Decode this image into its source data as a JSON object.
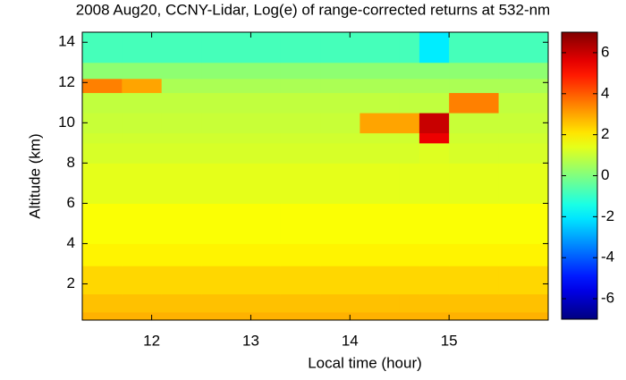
{
  "chart_data": {
    "type": "heatmap",
    "title": "2008 Aug20, CCNY-Lidar, Log(e) of range-corrected returns at 532-nm",
    "x_label": "Local time (hour)",
    "y_label": "Altitude (km)",
    "colormap": "jet",
    "x_edges": [
      11.3,
      11.7,
      12.1,
      12.5,
      12.9,
      13.3,
      13.7,
      14.1,
      14.5,
      14.7,
      15.0,
      15.5,
      16.0
    ],
    "y_edges": [
      0.2,
      0.6,
      1.5,
      2.9,
      4,
      6,
      8,
      9,
      9.5,
      10.5,
      11.5,
      12.2,
      13,
      14.5
    ],
    "z": [
      [
        2.8,
        2.8,
        2.8,
        2.8,
        2.8,
        2.8,
        2.8,
        2.8,
        2.8,
        2.8,
        2.8,
        2.8
      ],
      [
        2.6,
        2.6,
        2.6,
        2.6,
        2.6,
        2.6,
        2.6,
        2.6,
        2.6,
        2.6,
        2.6,
        2.6
      ],
      [
        2.3,
        2.3,
        2.3,
        2.3,
        2.3,
        2.3,
        2.3,
        2.3,
        2.3,
        2.3,
        2.3,
        2.3
      ],
      [
        1.9,
        1.9,
        1.9,
        1.9,
        1.9,
        1.9,
        1.9,
        1.9,
        1.9,
        1.9,
        1.9,
        1.9
      ],
      [
        1.7,
        1.7,
        1.7,
        1.7,
        1.7,
        1.7,
        1.7,
        1.7,
        1.7,
        1.7,
        1.7,
        1.7
      ],
      [
        1.4,
        1.4,
        1.4,
        1.4,
        1.4,
        1.4,
        1.4,
        1.4,
        1.4,
        1.4,
        1.4,
        1.4
      ],
      [
        1.2,
        1.2,
        1.2,
        1.2,
        1.2,
        1.2,
        1.2,
        1.2,
        1.2,
        1.3,
        1.2,
        1.2
      ],
      [
        1.1,
        1.1,
        1.1,
        1.1,
        1.1,
        1.1,
        1.1,
        1.1,
        1.1,
        5.5,
        1.1,
        1.1
      ],
      [
        1.0,
        1.0,
        1.0,
        1.0,
        1.0,
        1.0,
        1.0,
        3,
        3,
        6,
        1.0,
        1.0
      ],
      [
        0.9,
        0.9,
        0.9,
        0.9,
        0.9,
        0.9,
        0.9,
        0.9,
        0.9,
        0.9,
        3.5,
        0.9
      ],
      [
        3.5,
        3,
        0.6,
        0.6,
        0.6,
        0.6,
        0.6,
        0.6,
        0.6,
        0.6,
        0.6,
        0.6
      ],
      [
        0.2,
        0.2,
        0.2,
        0.2,
        0.2,
        0.2,
        0.2,
        0.2,
        0.2,
        0.2,
        0.2,
        0.2
      ],
      [
        -0.8,
        -0.8,
        -0.8,
        -0.8,
        -0.8,
        -0.8,
        -0.8,
        -0.8,
        -0.8,
        -2,
        -0.8,
        -0.8
      ]
    ],
    "xlim": [
      11.3,
      16.0
    ],
    "ylim": [
      0.2,
      14.5
    ],
    "xticks": [
      12,
      13,
      14,
      15
    ],
    "yticks": [
      2,
      4,
      6,
      8,
      10,
      12,
      14
    ],
    "clim": [
      -7,
      7
    ],
    "cticks": [
      -6,
      -4,
      -2,
      0,
      2,
      4,
      6
    ]
  }
}
